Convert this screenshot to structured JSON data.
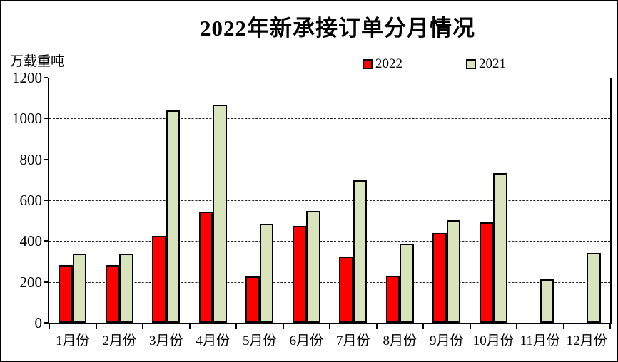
{
  "chart_data": {
    "type": "bar",
    "title": "2022年新承接订单分月情况",
    "ylabel": "万载重吨",
    "xlabel": "",
    "categories": [
      "1月份",
      "2月份",
      "3月份",
      "4月份",
      "5月份",
      "6月份",
      "7月份",
      "8月份",
      "9月份",
      "10月份",
      "11月份",
      "12月份"
    ],
    "series": [
      {
        "name": "2022",
        "color": "#FF0000",
        "values": [
          282,
          281,
          427,
          545,
          228,
          476,
          326,
          232,
          441,
          492,
          0,
          0
        ]
      },
      {
        "name": "2021",
        "color": "#D9E4BC",
        "values": [
          339,
          340,
          1041,
          1066,
          486,
          548,
          697,
          388,
          503,
          731,
          213,
          342
        ]
      }
    ],
    "ylim": [
      0,
      1200
    ],
    "yticks": [
      0,
      200,
      400,
      600,
      800,
      1000,
      1200
    ],
    "grid": "horizontal-dashed",
    "legend_position": "top",
    "axis_color": "#000000",
    "background_color": "#FFFFFF"
  }
}
